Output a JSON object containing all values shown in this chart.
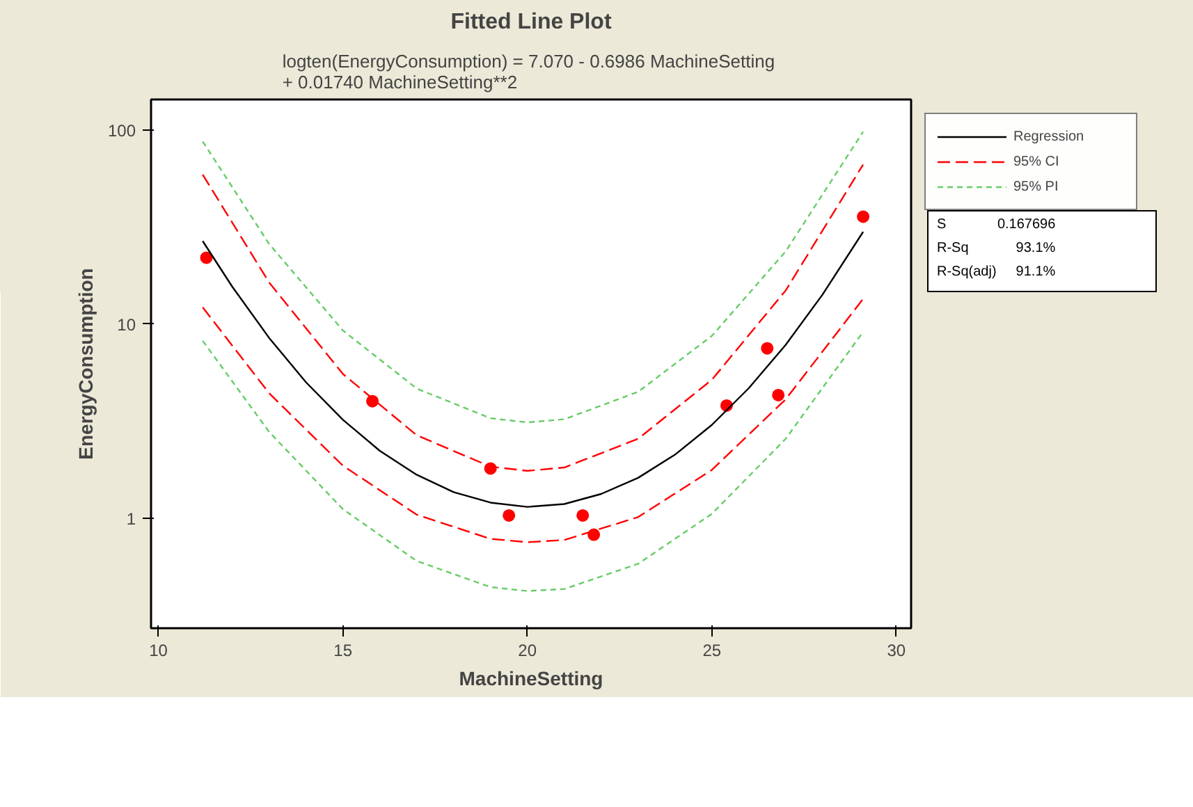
{
  "chart_data": {
    "type": "scatter",
    "title": "Fitted Line Plot",
    "subtitle": "logten(EnergyConsumption) =  7.070 - 0.6986 MachineSetting\n+ 0.01740 MachineSetting**2",
    "xlabel": "MachineSetting",
    "ylabel": "EnergyConsumption",
    "log": "y",
    "grid": false,
    "legend": "top right",
    "xlim": [
      9.8,
      30.4
    ],
    "xticks": [
      10,
      15,
      20,
      25,
      30
    ],
    "ylim": [
      0.27,
      144
    ],
    "yticks": [
      1,
      10,
      100
    ],
    "x": [
      11.3,
      15.8,
      19.0,
      19.5,
      21.5,
      21.8,
      25.4,
      26.5,
      26.8,
      29.1
    ],
    "series": [
      {
        "marker": "circle",
        "color": "#ff0000",
        "values": [
          22,
          4.0,
          1.8,
          1.03,
          1.03,
          0.82,
          3.8,
          7.5,
          4.3,
          35.8
        ]
      },
      {
        "type": "line",
        "name": "Regression",
        "color": "#000000",
        "line_style": "solid",
        "x": [
          11.2,
          12,
          13,
          14,
          15,
          16,
          17,
          18,
          19,
          20,
          21,
          22,
          23,
          24,
          25,
          26,
          27,
          28,
          29.1
        ],
        "values": [
          26.8,
          15.6,
          8.49,
          5.01,
          3.21,
          2.22,
          1.67,
          1.36,
          1.2,
          1.14,
          1.18,
          1.33,
          1.61,
          2.12,
          3.02,
          4.67,
          7.81,
          14.2,
          29.9
        ]
      },
      {
        "type": "line",
        "name": "95% CI",
        "color": "#ff0000",
        "line_style": "dashed",
        "x": [
          11.2,
          13,
          15,
          17,
          19,
          20,
          21,
          23,
          25,
          27,
          29.1
        ],
        "values": [
          59.0,
          16.4,
          5.53,
          2.67,
          1.84,
          1.75,
          1.82,
          2.56,
          5.16,
          14.9,
          66.5
        ]
      },
      {
        "type": "line",
        "color": "#ff0000",
        "line_style": "dashed",
        "x": [
          11.2,
          13,
          15,
          17,
          19,
          20,
          21,
          23,
          25,
          27,
          29.1
        ],
        "values": [
          12.2,
          4.4,
          1.86,
          1.04,
          0.78,
          0.75,
          0.77,
          1.01,
          1.77,
          4.09,
          13.5
        ]
      },
      {
        "type": "line",
        "name": "95% PI",
        "color": "#66cc66",
        "line_style": "dotted",
        "x": [
          11.2,
          13,
          15,
          17,
          19,
          20,
          21,
          23,
          25,
          27,
          29.1
        ],
        "values": [
          87.5,
          25.9,
          9.27,
          4.65,
          3.27,
          3.11,
          3.23,
          4.47,
          8.69,
          23.7,
          98.2
        ]
      },
      {
        "type": "line",
        "color": "#66cc66",
        "line_style": "dotted",
        "x": [
          11.2,
          13,
          15,
          17,
          19,
          20,
          21,
          23,
          25,
          27,
          29.1
        ],
        "values": [
          8.2,
          2.78,
          1.11,
          0.6,
          0.44,
          0.42,
          0.43,
          0.58,
          1.05,
          2.56,
          9.12
        ]
      }
    ],
    "annotations": [
      "S\t0.167696",
      "R-Sq\t93.1%",
      "R-Sq(adj)\t91.1%"
    ]
  }
}
